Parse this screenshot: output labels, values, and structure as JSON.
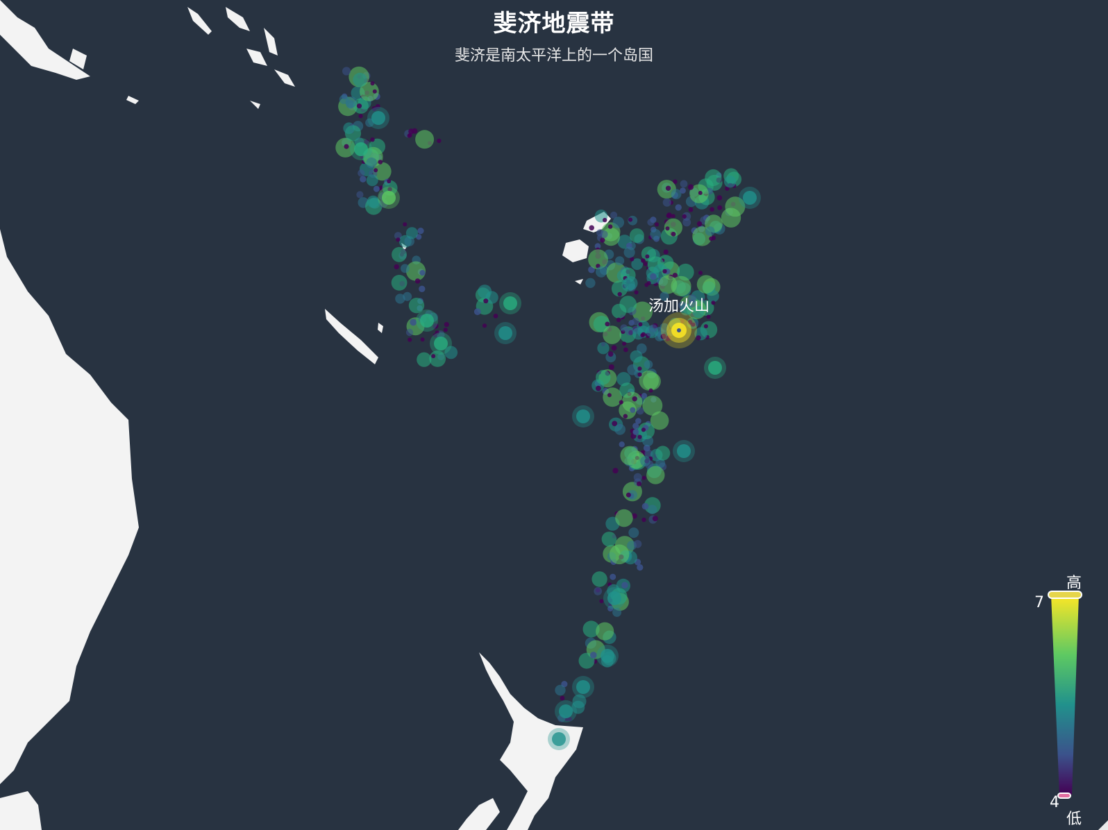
{
  "title": "斐济地震带",
  "subtitle": "斐济是南太平洋上的一个岛国",
  "annotation": "汤加火山",
  "visual_map": {
    "high_label": "高",
    "low_label": "低",
    "max": "7",
    "min": "4",
    "gradient": [
      "#fde725",
      "#5ec962",
      "#21918c",
      "#3b528b",
      "#440154"
    ]
  },
  "colors": {
    "background": "#283341",
    "land": "#f3f3f3"
  }
}
